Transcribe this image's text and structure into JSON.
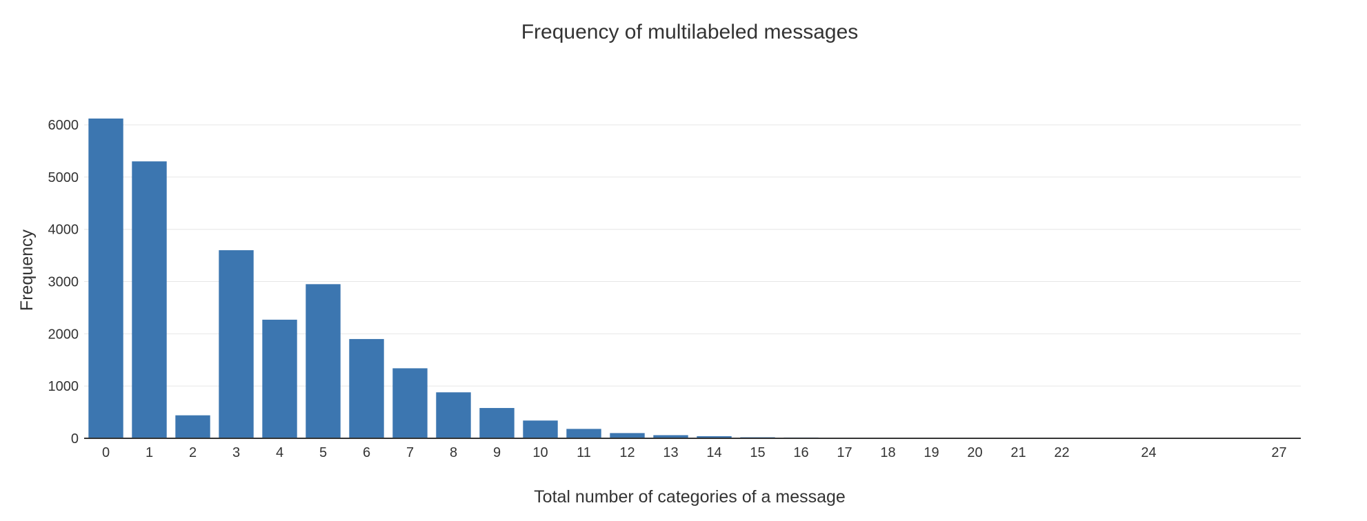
{
  "chart_data": {
    "type": "bar",
    "title": "Frequency of multilabeled messages",
    "xlabel": "Total number of categories of a message",
    "ylabel": "Frequency",
    "x": [
      0,
      1,
      2,
      3,
      4,
      5,
      6,
      7,
      8,
      9,
      10,
      11,
      12,
      13,
      14,
      15,
      16,
      17,
      18,
      19,
      20,
      21,
      22,
      24,
      27
    ],
    "x_tick_labels": [
      "0",
      "1",
      "2",
      "3",
      "4",
      "5",
      "6",
      "7",
      "8",
      "9",
      "10",
      "11",
      "12",
      "13",
      "14",
      "15",
      "16",
      "17",
      "18",
      "19",
      "20",
      "21",
      "22",
      "24",
      "27"
    ],
    "values": [
      6120,
      5300,
      440,
      3600,
      2270,
      2950,
      1900,
      1340,
      880,
      580,
      340,
      180,
      100,
      60,
      40,
      20,
      15,
      10,
      10,
      10,
      10,
      10,
      10,
      10,
      10
    ],
    "xlim": [
      -0.5,
      27.5
    ],
    "ylim": [
      0,
      6120
    ],
    "y_ticks": [
      0,
      1000,
      2000,
      3000,
      4000,
      5000,
      6000
    ],
    "y_tick_labels": [
      "0",
      "1000",
      "2000",
      "3000",
      "4000",
      "5000",
      "6000"
    ],
    "grid": true,
    "legend": "none",
    "bar_color": "#3c76b0"
  }
}
